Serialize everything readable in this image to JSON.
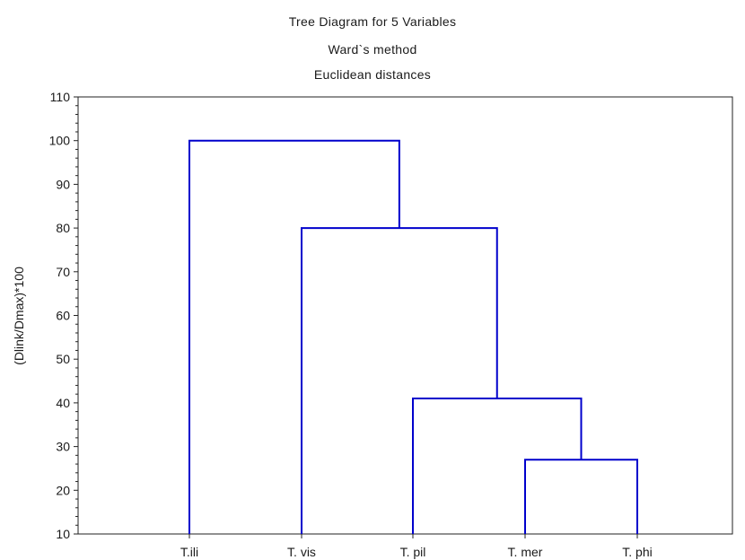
{
  "chart_data": {
    "type": "dendrogram",
    "title": "Tree Diagram for 5   Variables",
    "subtitle": "Ward`s method",
    "subtitle2": "Euclidean distances",
    "xlabel": "",
    "ylabel": "(Dlink/Dmax)*100",
    "ylim": [
      10,
      110
    ],
    "yticks": [
      10,
      20,
      30,
      40,
      50,
      60,
      70,
      80,
      90,
      100,
      110
    ],
    "leaves": [
      "T.ili",
      "T. vis",
      "T. pil",
      "T. mer",
      "T. phi"
    ],
    "merges": [
      {
        "left": "T. mer",
        "right": "T. phi",
        "height": 27
      },
      {
        "left": "T. pil",
        "right": "T. mer + T. phi",
        "height": 41
      },
      {
        "left": "T. vis",
        "right": "T. pil + T. mer + T. phi",
        "height": 80
      },
      {
        "left": "T.ili",
        "right": "T. vis + T. pil + T. mer + T. phi",
        "height": 100
      }
    ],
    "line_color": "#0000cc",
    "grid": false
  }
}
